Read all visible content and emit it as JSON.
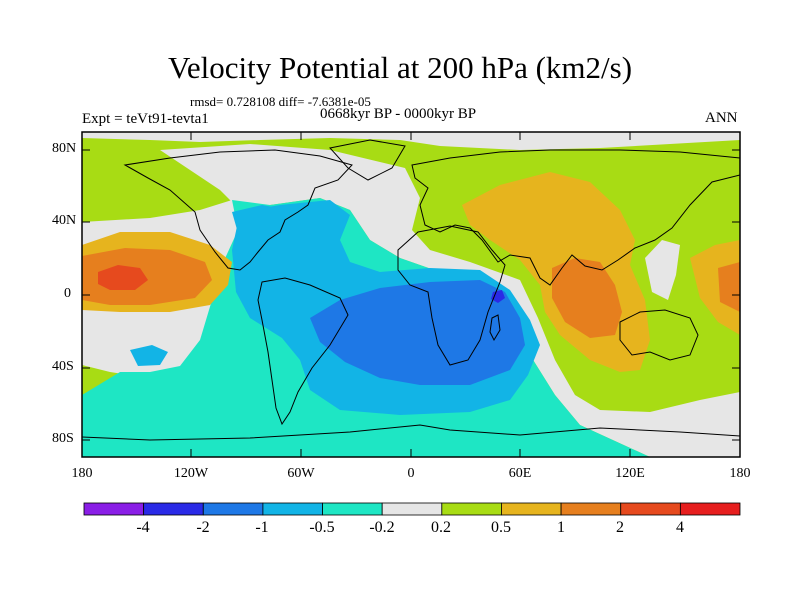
{
  "header": {
    "title": "Velocity Potential at 200 hPa (km2/s)",
    "stats": "rmsd= 0.728108 diff= -7.6381e-05",
    "experiment": "Expt = teVt91-tevta1",
    "period": "0668kyr BP - 0000kyr BP",
    "season": "ANN"
  },
  "axes": {
    "lat_labels": [
      "80N",
      "40N",
      "0",
      "40S",
      "80S"
    ],
    "lon_labels": [
      "180",
      "120W",
      "60W",
      "0",
      "60E",
      "120E",
      "180"
    ]
  },
  "colorbar": {
    "colors": [
      "#8a1ee6",
      "#2a2ae6",
      "#1e78e6",
      "#12b4e6",
      "#1ee6c4",
      "#e6e6e6",
      "#a8dc14",
      "#e6b41e",
      "#e67f1e",
      "#e64a1e",
      "#e61e1e"
    ],
    "labels": [
      "-4",
      "-2",
      "-1",
      "-0.5",
      "-0.2",
      "0.2",
      "0.5",
      "1",
      "2",
      "4"
    ]
  },
  "map": {
    "background_color": "#a8dc14",
    "regions": [
      {
        "name": "neutral-arctic-band",
        "color": "#e6e6e6"
      },
      {
        "name": "neutral-east-pacific",
        "color": "#e6e6e6"
      },
      {
        "name": "neutral-atlantic-band",
        "color": "#e6e6e6"
      },
      {
        "name": "neutral-maritime",
        "color": "#e6e6e6"
      },
      {
        "name": "light-negative-americas-atlantic",
        "color": "#1ee6c4"
      },
      {
        "name": "light-negative-southern-ocean",
        "color": "#1ee6c4"
      },
      {
        "name": "negative-atlantic-africa",
        "color": "#12b4e6"
      },
      {
        "name": "negative-caribbean",
        "color": "#12b4e6"
      },
      {
        "name": "negative-se-pacific",
        "color": "#12b4e6"
      },
      {
        "name": "strong-negative-africa-indian",
        "color": "#1e78e6"
      },
      {
        "name": "extreme-negative-madagascar",
        "color": "#2a2ae6"
      },
      {
        "name": "positive-asia",
        "color": "#e6b41e"
      },
      {
        "name": "positive-central-pacific",
        "color": "#e6b41e"
      },
      {
        "name": "positive-east-edge",
        "color": "#e6b41e"
      },
      {
        "name": "strong-positive-central-pacific",
        "color": "#e67f1e"
      },
      {
        "name": "strong-positive-indian-ocean",
        "color": "#e67f1e"
      },
      {
        "name": "strong-positive-east-edge",
        "color": "#e67f1e"
      },
      {
        "name": "max-positive-central-pacific",
        "color": "#e64a1e"
      }
    ]
  }
}
